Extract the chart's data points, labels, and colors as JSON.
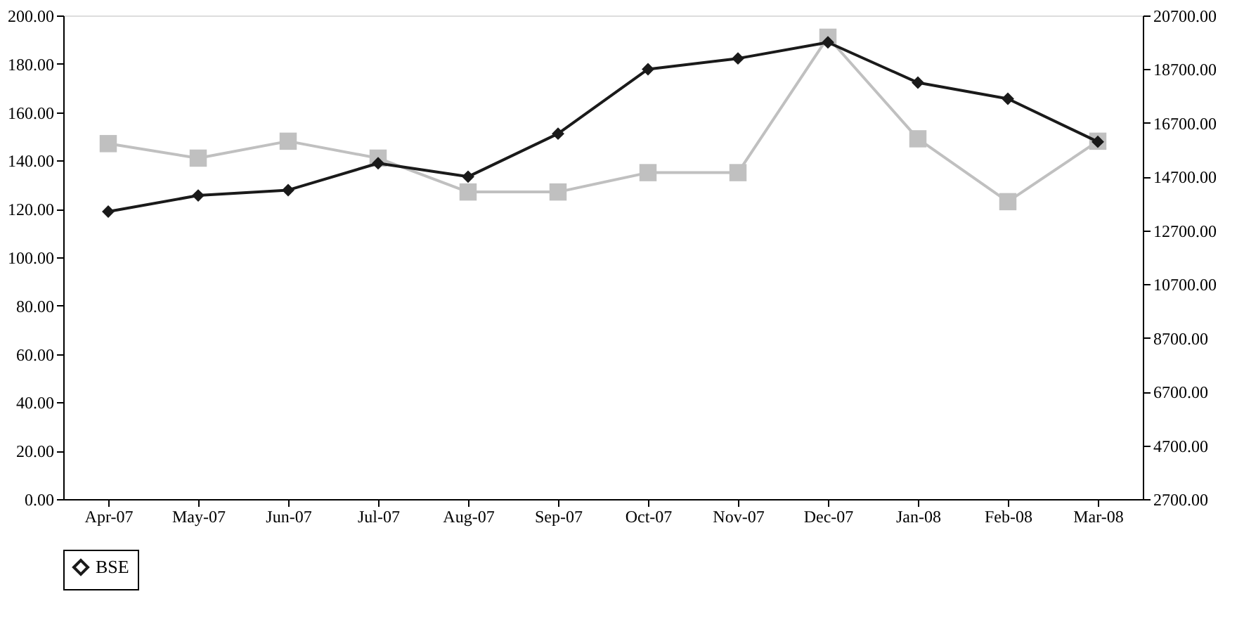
{
  "chart_data": {
    "type": "line",
    "categories": [
      "Apr-07",
      "May-07",
      "Jun-07",
      "Jul-07",
      "Aug-07",
      "Sep-07",
      "Oct-07",
      "Nov-07",
      "Dec-07",
      "Jan-08",
      "Feb-08",
      "Mar-08"
    ],
    "series": [
      {
        "color": "#c0c0c0",
        "marker": "square",
        "values": [
          147,
          141,
          148,
          141,
          127,
          127,
          135,
          135,
          191,
          149,
          123,
          148
        ]
      },
      {
        "name": "BSE",
        "color": "#1a1a1a",
        "marker": "diamond",
        "axis": "y2",
        "values": [
          13400,
          14000,
          14200,
          15200,
          14700,
          16300,
          18700,
          19100,
          19700,
          18200,
          17600,
          16000
        ]
      }
    ],
    "ylim": [
      0,
      200
    ],
    "yticks": [
      {
        "value": 0,
        "label": "0.00"
      },
      {
        "value": 20,
        "label": "20.00"
      },
      {
        "value": 40,
        "label": "40.00"
      },
      {
        "value": 60,
        "label": "60.00"
      },
      {
        "value": 80,
        "label": "80.00"
      },
      {
        "value": 100,
        "label": "100.00"
      },
      {
        "value": 120,
        "label": "120.00"
      },
      {
        "value": 140,
        "label": "140.00"
      },
      {
        "value": 160,
        "label": "160.00"
      },
      {
        "value": 180,
        "label": "180.00"
      },
      {
        "value": 200,
        "label": "200.00"
      }
    ],
    "y2lim": [
      2700,
      20700
    ],
    "y2ticks": [
      {
        "value": 2700,
        "label": "2700.00"
      },
      {
        "value": 4700,
        "label": "4700.00"
      },
      {
        "value": 6700,
        "label": "6700.00"
      },
      {
        "value": 8700,
        "label": "8700.00"
      },
      {
        "value": 10700,
        "label": "10700.00"
      },
      {
        "value": 12700,
        "label": "12700.00"
      },
      {
        "value": 14700,
        "label": "14700.00"
      },
      {
        "value": 16700,
        "label": "16700.00"
      },
      {
        "value": 18700,
        "label": "18700.00"
      },
      {
        "value": 20700,
        "label": "20700.00"
      }
    ],
    "legend": "bottom",
    "line_style": "solid"
  }
}
